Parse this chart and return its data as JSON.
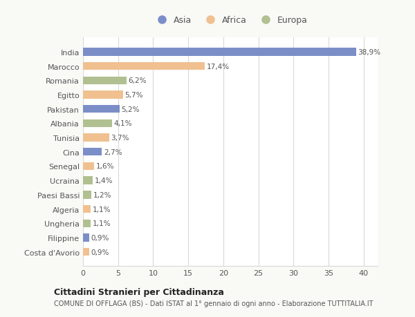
{
  "countries": [
    "India",
    "Marocco",
    "Romania",
    "Egitto",
    "Pakistan",
    "Albania",
    "Tunisia",
    "Cina",
    "Senegal",
    "Ucraina",
    "Paesi Bassi",
    "Algeria",
    "Ungheria",
    "Filippine",
    "Costa d'Avorio"
  ],
  "values": [
    38.9,
    17.4,
    6.2,
    5.7,
    5.2,
    4.1,
    3.7,
    2.7,
    1.6,
    1.4,
    1.2,
    1.1,
    1.1,
    0.9,
    0.9
  ],
  "labels": [
    "38,9%",
    "17,4%",
    "6,2%",
    "5,7%",
    "5,2%",
    "4,1%",
    "3,7%",
    "2,7%",
    "1,6%",
    "1,4%",
    "1,2%",
    "1,1%",
    "1,1%",
    "0,9%",
    "0,9%"
  ],
  "categories": [
    "Asia",
    "Africa",
    "Europa"
  ],
  "colors": {
    "India": "#7B8EC8",
    "Marocco": "#F0C090",
    "Romania": "#B0C090",
    "Egitto": "#F0C090",
    "Pakistan": "#7B8EC8",
    "Albania": "#B0C090",
    "Tunisia": "#F0C090",
    "Cina": "#7B8EC8",
    "Senegal": "#F0C090",
    "Ucraina": "#B0C090",
    "Paesi Bassi": "#B0C090",
    "Algeria": "#F0C090",
    "Ungheria": "#B0C090",
    "Filippine": "#7B8EC8",
    "Costa d'Avorio": "#F0C090"
  },
  "legend_colors": {
    "Asia": "#7B8EC8",
    "Africa": "#F0C090",
    "Europa": "#B0C090"
  },
  "title1": "Cittadini Stranieri per Cittadinanza",
  "title2": "COMUNE DI OFFLAGA (BS) - Dati ISTAT al 1° gennaio di ogni anno - Elaborazione TUTTITALIA.IT",
  "xlim": [
    0,
    42
  ],
  "xticks": [
    0,
    5,
    10,
    15,
    20,
    25,
    30,
    35,
    40
  ],
  "figure_bg": "#f9f9f6",
  "plot_bg": "#ffffff",
  "grid_color": "#d8d8d8",
  "text_color": "#555555",
  "label_color": "#555555"
}
